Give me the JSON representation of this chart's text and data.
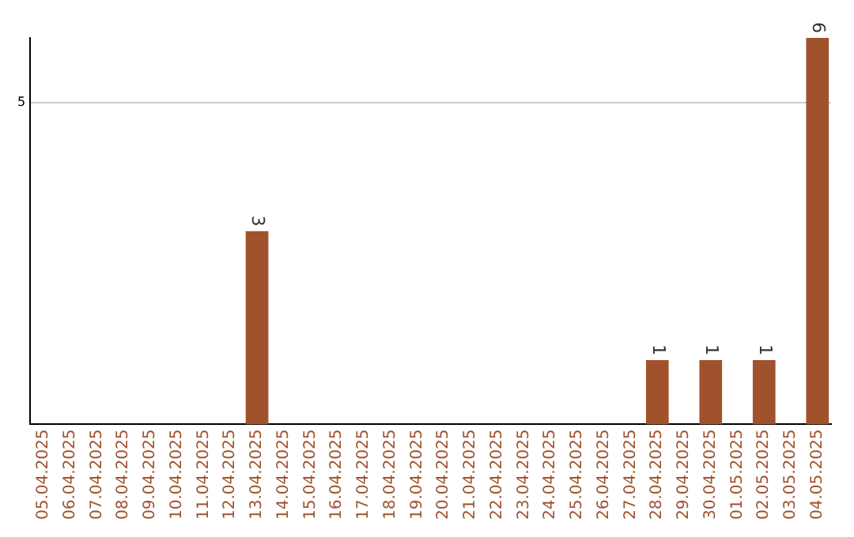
{
  "chart_data": {
    "type": "bar",
    "categories": [
      "05.04.2025",
      "06.04.2025",
      "07.04.2025",
      "08.04.2025",
      "09.04.2025",
      "10.04.2025",
      "11.04.2025",
      "12.04.2025",
      "13.04.2025",
      "14.04.2025",
      "15.04.2025",
      "16.04.2025",
      "17.04.2025",
      "18.04.2025",
      "19.04.2025",
      "20.04.2025",
      "21.04.2025",
      "22.04.2025",
      "23.04.2025",
      "24.04.2025",
      "25.04.2025",
      "26.04.2025",
      "27.04.2025",
      "28.04.2025",
      "29.04.2025",
      "30.04.2025",
      "01.05.2025",
      "02.05.2025",
      "03.05.2025",
      "04.05.2025"
    ],
    "values": [
      0,
      0,
      0,
      0,
      0,
      0,
      0,
      0,
      3,
      0,
      0,
      0,
      0,
      0,
      0,
      0,
      0,
      0,
      0,
      0,
      0,
      0,
      0,
      1,
      0,
      1,
      0,
      1,
      0,
      6
    ],
    "value_labels": [
      null,
      null,
      null,
      null,
      null,
      null,
      null,
      null,
      "3",
      null,
      null,
      null,
      null,
      null,
      null,
      null,
      null,
      null,
      null,
      null,
      null,
      null,
      null,
      "1",
      null,
      "1",
      null,
      "1",
      null,
      "6"
    ],
    "color": "#a0522d",
    "ylim": [
      0,
      6
    ],
    "yticks": [
      5
    ],
    "grid": "y",
    "legend": false
  }
}
